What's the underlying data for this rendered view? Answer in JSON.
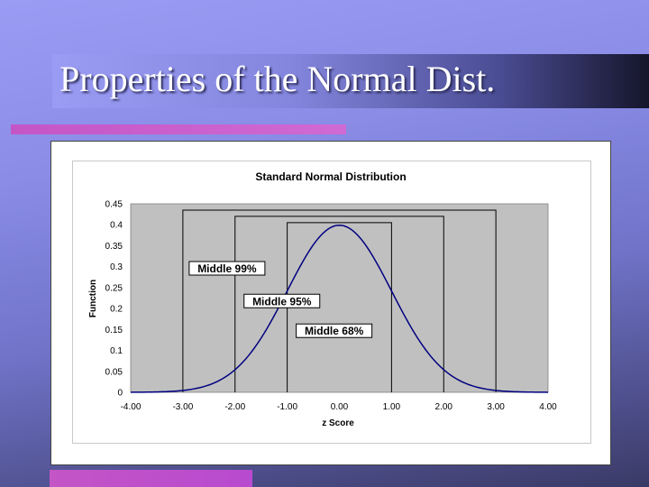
{
  "slide": {
    "title": "Properties of the Normal Dist."
  },
  "chart_data": {
    "type": "line",
    "title": "Standard Normal Distribution",
    "xlabel": "z Score",
    "ylabel": "Function",
    "xlim": [
      -4,
      4
    ],
    "ylim": [
      0,
      0.45
    ],
    "x_ticks": [
      "-4.00",
      "-3.00",
      "-2.00",
      "-1.00",
      "0.00",
      "1.00",
      "2.00",
      "3.00",
      "4.00"
    ],
    "y_ticks": [
      "0",
      "0.05",
      "0.1",
      "0.15",
      "0.2",
      "0.25",
      "0.3",
      "0.35",
      "0.4",
      "0.45"
    ],
    "grid": false,
    "series": [
      {
        "x": [
          -4.0,
          -3.5,
          -3.0,
          -2.5,
          -2.0,
          -1.5,
          -1.0,
          -0.5,
          0.0,
          0.5,
          1.0,
          1.5,
          2.0,
          2.5,
          3.0,
          3.5,
          4.0
        ],
        "values": [
          0.0001,
          0.0009,
          0.0044,
          0.0175,
          0.054,
          0.1295,
          0.242,
          0.3521,
          0.3989,
          0.3521,
          0.242,
          0.1295,
          0.054,
          0.0175,
          0.0044,
          0.0009,
          0.0001
        ]
      }
    ],
    "annotations": [
      {
        "label": "Middle 99%",
        "range": [
          -3,
          3
        ],
        "top": 0.435
      },
      {
        "label": "Middle 95%",
        "range": [
          -2,
          2
        ],
        "top": 0.42
      },
      {
        "label": "Middle 68%",
        "range": [
          -1,
          1
        ],
        "top": 0.405
      }
    ],
    "colors": {
      "plot_background": "#c0c0c0",
      "curve": "#000080",
      "bracket": "#000000"
    }
  }
}
